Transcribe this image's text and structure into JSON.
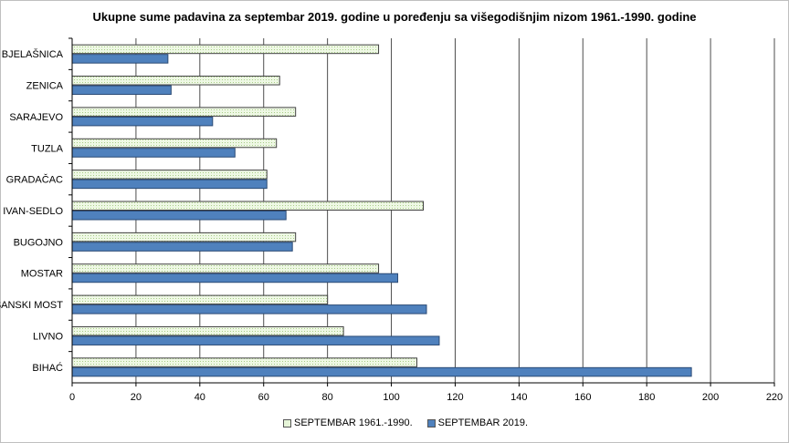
{
  "chart_data": {
    "type": "bar",
    "orientation": "horizontal",
    "title": "Ukupne sume padavina za septembar 2019. godine u poređenju sa višegodišnjim nizom 1961.-1990.  godine",
    "categories": [
      "BJELAŠNICA",
      "ZENICA",
      "SARAJEVO",
      "TUZLA",
      "GRADAČAC",
      "IVAN-SEDLO",
      "BUGOJNO",
      "MOSTAR",
      "SANSKI MOST",
      "LIVNO",
      "BIHAĆ"
    ],
    "series": [
      {
        "name": "SEPTEMBAR 1961.-1990.",
        "color": "#e6f5d8",
        "values": [
          96,
          65,
          70,
          64,
          61,
          110,
          70,
          96,
          80,
          85,
          108
        ]
      },
      {
        "name": "SEPTEMBAR 2019.",
        "color": "#4f81bd",
        "values": [
          30,
          31,
          44,
          51,
          61,
          67,
          69,
          102,
          111,
          115,
          194
        ]
      }
    ],
    "xlim": [
      0,
      220
    ],
    "xticks": [
      "0",
      "20",
      "40",
      "60",
      "80",
      "100",
      "120",
      "140",
      "160",
      "180",
      "200",
      "220"
    ],
    "grid": true,
    "legend_position": "bottom"
  }
}
